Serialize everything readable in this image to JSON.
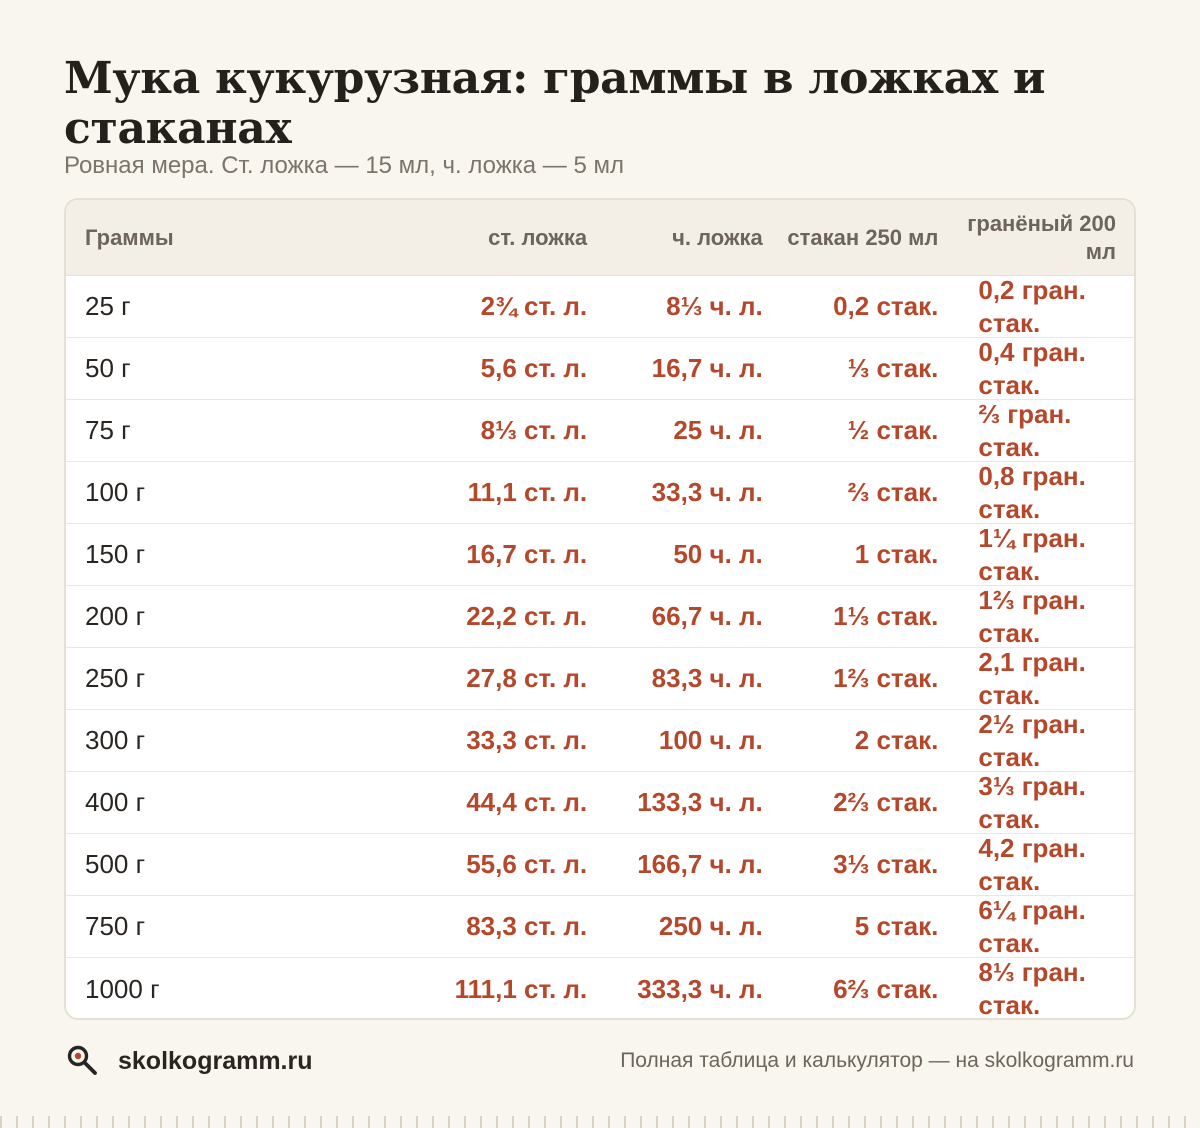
{
  "title": "Мука кукурузная: граммы в ложках и стаканах",
  "subtitle": "Ровная мера. Ст. ложка — 15 мл, ч. ложка — 5 мл",
  "table": {
    "headers": [
      "Граммы",
      "ст. ложка",
      "ч. ложка",
      "стакан 250 мл",
      "гранёный 200 мл"
    ],
    "rows": [
      [
        "25 г",
        "2¾ ст. л.",
        "8⅓ ч. л.",
        "0,2 стак.",
        "0,2 гран. стак."
      ],
      [
        "50 г",
        "5,6 ст. л.",
        "16,7 ч. л.",
        "⅓ стак.",
        "0,4 гран. стак."
      ],
      [
        "75 г",
        "8⅓ ст. л.",
        "25 ч. л.",
        "½ стак.",
        "⅔ гран. стак."
      ],
      [
        "100 г",
        "11,1 ст. л.",
        "33,3 ч. л.",
        "⅔ стак.",
        "0,8 гран. стак."
      ],
      [
        "150 г",
        "16,7 ст. л.",
        "50 ч. л.",
        "1 стак.",
        "1¼ гран. стак."
      ],
      [
        "200 г",
        "22,2 ст. л.",
        "66,7 ч. л.",
        "1⅓ стак.",
        "1⅔ гран. стак."
      ],
      [
        "250 г",
        "27,8 ст. л.",
        "83,3 ч. л.",
        "1⅔ стак.",
        "2,1 гран. стак."
      ],
      [
        "300 г",
        "33,3 ст. л.",
        "100 ч. л.",
        "2 стак.",
        "2½ гран. стак."
      ],
      [
        "400 г",
        "44,4 ст. л.",
        "133,3 ч. л.",
        "2⅔ стак.",
        "3⅓ гран. стак."
      ],
      [
        "500 г",
        "55,6 ст. л.",
        "166,7 ч. л.",
        "3⅓ стак.",
        "4,2 гран. стак."
      ],
      [
        "750 г",
        "83,3 ст. л.",
        "250 ч. л.",
        "5 стак.",
        "6¼ гран. стак."
      ],
      [
        "1000 г",
        "111,1 ст. л.",
        "333,3 ч. л.",
        "6⅔ стак.",
        "8⅓ гран. стак."
      ]
    ]
  },
  "footer": {
    "logo_icon": "magnifier-icon",
    "site": "skolkogramm.ru",
    "note": "Полная таблица и калькулятор — на skolkogramm.ru"
  },
  "colors": {
    "background": "#f9f6ef",
    "accent": "#b5472a",
    "header_bg": "#f3efe6"
  }
}
